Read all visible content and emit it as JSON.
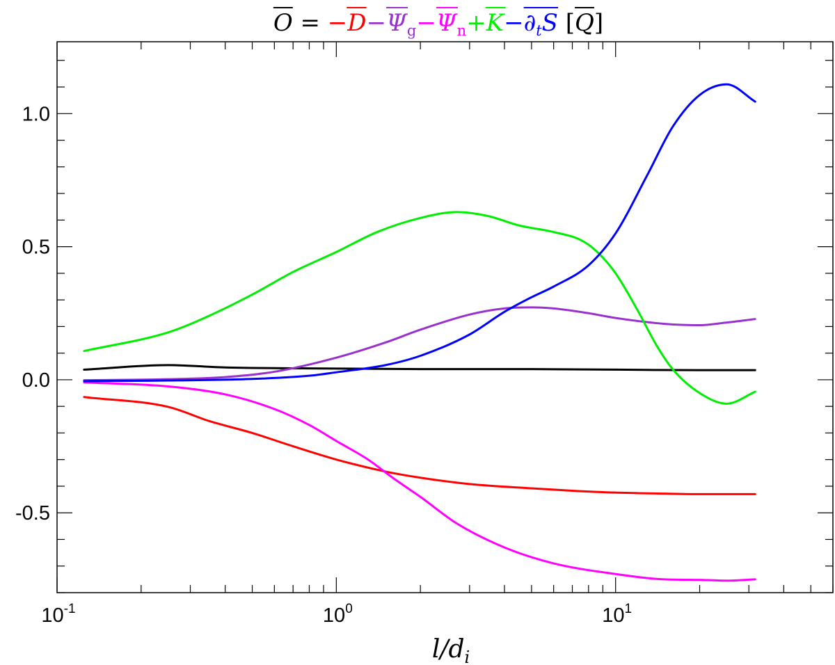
{
  "chart_data": {
    "type": "line",
    "title": {
      "parts": [
        {
          "text": "O",
          "overline": true,
          "italic": true,
          "color": "#000000"
        },
        {
          "text": " = ",
          "color": "#000000"
        },
        {
          "text": "−",
          "color": "#ff0000"
        },
        {
          "text": "D",
          "overline": true,
          "italic": true,
          "color": "#ff0000"
        },
        {
          "text": "−",
          "color": "#9932cc"
        },
        {
          "text": "Ψ",
          "overline": true,
          "italic": true,
          "color": "#9932cc"
        },
        {
          "text": "g",
          "sub": true,
          "color": "#9932cc"
        },
        {
          "text": "−",
          "color": "#ff00ff"
        },
        {
          "text": "Ψ",
          "overline": true,
          "italic": true,
          "color": "#ff00ff"
        },
        {
          "text": "n",
          "sub": true,
          "color": "#ff00ff"
        },
        {
          "text": "+",
          "color": "#00ee00"
        },
        {
          "text": "K",
          "overline": true,
          "italic": true,
          "color": "#00ee00"
        },
        {
          "text": "−",
          "color": "#0000ff"
        },
        {
          "text": "∂",
          "italic": true,
          "color": "#0000ff",
          "overline_start": true
        },
        {
          "text": "t",
          "sub": true,
          "italic": true,
          "color": "#0000ff"
        },
        {
          "text": "S",
          "italic": true,
          "color": "#0000ff",
          "overline_end": true
        },
        {
          "text": " [",
          "color": "#000000"
        },
        {
          "text": "Q",
          "overline": true,
          "italic": true,
          "color": "#000000"
        },
        {
          "text": "]",
          "color": "#000000"
        }
      ]
    },
    "xlabel": "l/d_i",
    "xscale": "log",
    "xlim": [
      0.1,
      60
    ],
    "ylim": [
      -0.8,
      1.27
    ],
    "xticks": [
      {
        "value": 0.1,
        "base": "10",
        "exp": "-1"
      },
      {
        "value": 1,
        "base": "10",
        "exp": "0"
      },
      {
        "value": 10,
        "base": "10",
        "exp": "1"
      }
    ],
    "yticks": [
      {
        "value": -0.5,
        "label": "-0.5"
      },
      {
        "value": 0.0,
        "label": "0.0"
      },
      {
        "value": 0.5,
        "label": "0.5"
      },
      {
        "value": 1.0,
        "label": "1.0"
      }
    ],
    "series": [
      {
        "color": "#000000",
        "x": [
          0.125,
          0.25,
          0.4,
          0.7,
          1,
          2,
          5,
          10,
          20,
          31.6
        ],
        "y": [
          0.038,
          0.055,
          0.046,
          0.043,
          0.042,
          0.04,
          0.04,
          0.038,
          0.036,
          0.036
        ]
      },
      {
        "color": "#ff0000",
        "x": [
          0.125,
          0.25,
          0.35,
          0.5,
          0.7,
          1,
          1.5,
          2,
          3,
          5,
          7,
          10,
          15,
          20,
          31.6
        ],
        "y": [
          -0.065,
          -0.102,
          -0.155,
          -0.2,
          -0.25,
          -0.3,
          -0.345,
          -0.368,
          -0.392,
          -0.408,
          -0.417,
          -0.424,
          -0.428,
          -0.43,
          -0.43
        ]
      },
      {
        "color": "#9932cc",
        "x": [
          0.125,
          0.25,
          0.4,
          0.6,
          1,
          1.5,
          2,
          3,
          4,
          5,
          6,
          8,
          10,
          15,
          20,
          25,
          31.6
        ],
        "y": [
          -0.002,
          0.002,
          0.01,
          0.03,
          0.083,
          0.14,
          0.188,
          0.245,
          0.268,
          0.272,
          0.268,
          0.25,
          0.232,
          0.21,
          0.205,
          0.215,
          0.228
        ]
      },
      {
        "color": "#ff00ff",
        "x": [
          0.125,
          0.25,
          0.4,
          0.6,
          0.8,
          1,
          1.3,
          1.6,
          2,
          2.7,
          4,
          6,
          10,
          15,
          20,
          25,
          31.6
        ],
        "y": [
          -0.01,
          -0.025,
          -0.055,
          -0.11,
          -0.17,
          -0.23,
          -0.3,
          -0.37,
          -0.44,
          -0.54,
          -0.63,
          -0.69,
          -0.73,
          -0.75,
          -0.752,
          -0.755,
          -0.75
        ]
      },
      {
        "color": "#00ee00",
        "x": [
          0.125,
          0.25,
          0.35,
          0.5,
          0.7,
          1,
          1.4,
          2,
          2.7,
          3.5,
          4.5,
          6,
          7.5,
          8.5,
          10,
          12,
          14,
          16,
          20,
          25,
          31.6
        ],
        "y": [
          0.108,
          0.178,
          0.24,
          0.32,
          0.405,
          0.48,
          0.555,
          0.608,
          0.63,
          0.615,
          0.58,
          0.555,
          0.525,
          0.485,
          0.4,
          0.26,
          0.13,
          0.04,
          -0.05,
          -0.09,
          -0.045
        ]
      },
      {
        "color": "#0000ff",
        "x": [
          0.125,
          0.25,
          0.5,
          0.8,
          1,
          1.5,
          2,
          3,
          4,
          5,
          6,
          8,
          10,
          13,
          16,
          20,
          25,
          31.6
        ],
        "y": [
          -0.005,
          -0.003,
          0.003,
          0.015,
          0.028,
          0.055,
          0.09,
          0.17,
          0.255,
          0.31,
          0.35,
          0.43,
          0.55,
          0.77,
          0.95,
          1.07,
          1.11,
          1.045
        ]
      }
    ]
  }
}
